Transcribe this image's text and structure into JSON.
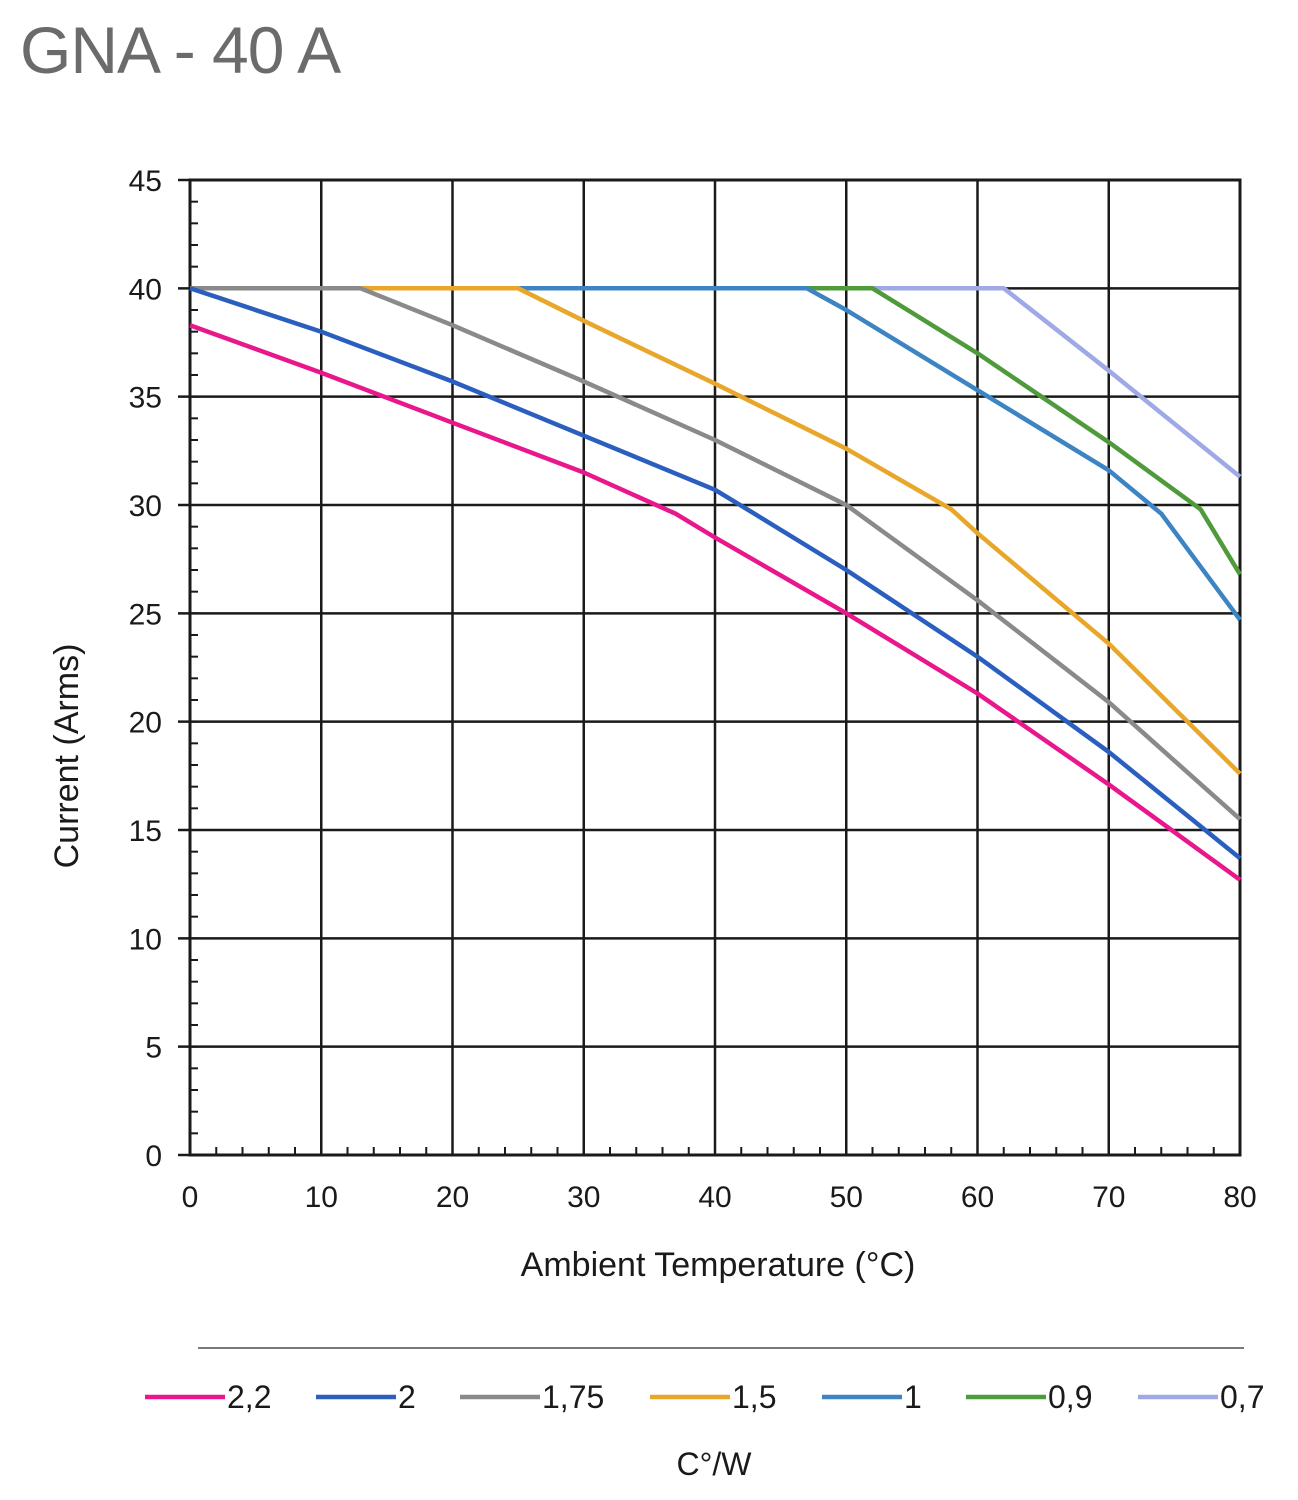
{
  "title": "GNA - 40 A",
  "chart_data": {
    "type": "line",
    "xlabel": "Ambient Temperature (°C)",
    "ylabel": "Current (Arms)",
    "xlim": [
      0,
      80
    ],
    "ylim": [
      0,
      45
    ],
    "x_ticks": [
      "0",
      "10",
      "20",
      "30",
      "40",
      "50",
      "60",
      "70",
      "80"
    ],
    "y_ticks": [
      "0",
      "5",
      "10",
      "15",
      "20",
      "25",
      "30",
      "35",
      "40",
      "45"
    ],
    "grid": true,
    "legend_position": "bottom",
    "legend_title": "C°/W",
    "series": [
      {
        "name": "2,2",
        "color": "#e8188c",
        "points": [
          [
            0,
            38.3
          ],
          [
            10,
            36.1
          ],
          [
            20,
            33.8
          ],
          [
            30,
            31.5
          ],
          [
            37,
            29.6
          ],
          [
            40,
            28.5
          ],
          [
            50,
            25.0
          ],
          [
            60,
            21.3
          ],
          [
            70,
            17.1
          ],
          [
            80,
            12.7
          ]
        ]
      },
      {
        "name": "2",
        "color": "#2a5fbf",
        "points": [
          [
            0,
            40
          ],
          [
            10,
            38.0
          ],
          [
            20,
            35.7
          ],
          [
            30,
            33.2
          ],
          [
            40,
            30.7
          ],
          [
            43,
            29.6
          ],
          [
            50,
            27.0
          ],
          [
            60,
            23.0
          ],
          [
            70,
            18.6
          ],
          [
            80,
            13.7
          ]
        ]
      },
      {
        "name": "1,75",
        "color": "#8a8a8a",
        "points": [
          [
            0,
            40
          ],
          [
            13,
            40
          ],
          [
            20,
            38.3
          ],
          [
            30,
            35.7
          ],
          [
            40,
            33.0
          ],
          [
            50,
            30.0
          ],
          [
            60,
            25.6
          ],
          [
            70,
            20.9
          ],
          [
            80,
            15.5
          ]
        ]
      },
      {
        "name": "1,5",
        "color": "#e8a72a",
        "points": [
          [
            0,
            40
          ],
          [
            25,
            40
          ],
          [
            30,
            38.5
          ],
          [
            40,
            35.6
          ],
          [
            50,
            32.6
          ],
          [
            58,
            29.8
          ],
          [
            60,
            28.7
          ],
          [
            70,
            23.6
          ],
          [
            80,
            17.6
          ]
        ]
      },
      {
        "name": "1",
        "color": "#3c84c2",
        "points": [
          [
            0,
            40
          ],
          [
            47,
            40
          ],
          [
            50,
            39.0
          ],
          [
            60,
            35.3
          ],
          [
            70,
            31.6
          ],
          [
            74,
            29.6
          ],
          [
            80,
            24.7
          ]
        ]
      },
      {
        "name": "0,9",
        "color": "#4f9a3a",
        "points": [
          [
            0,
            40
          ],
          [
            52,
            40
          ],
          [
            60,
            37.0
          ],
          [
            70,
            32.9
          ],
          [
            77,
            29.8
          ],
          [
            80,
            26.8
          ]
        ]
      },
      {
        "name": "0,7",
        "color": "#9ea9e6",
        "points": [
          [
            0,
            40
          ],
          [
            62,
            40
          ],
          [
            70,
            36.2
          ],
          [
            80,
            31.3
          ]
        ]
      }
    ]
  }
}
